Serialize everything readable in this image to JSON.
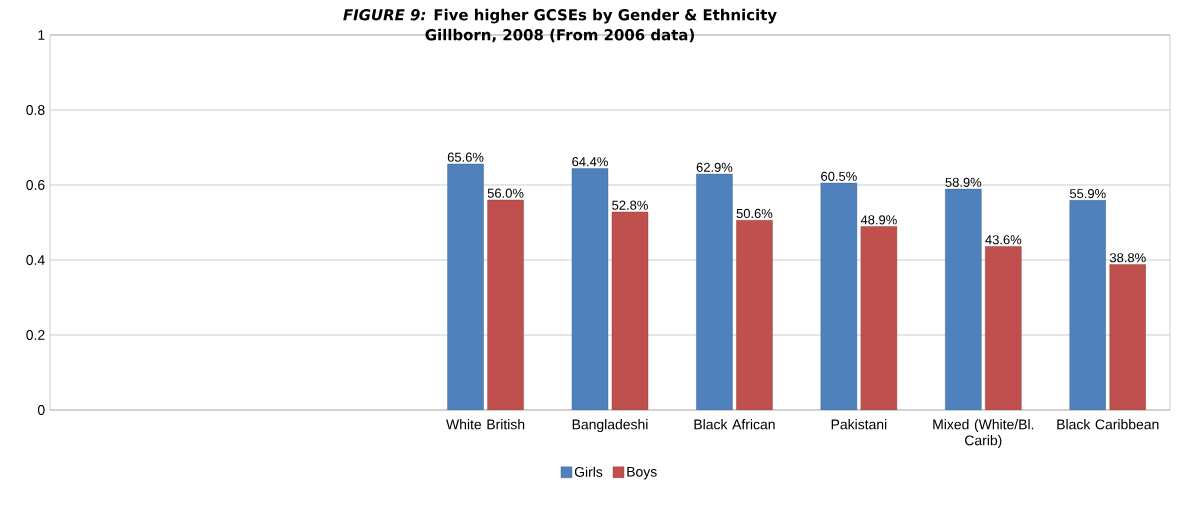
{
  "chart_data": {
    "type": "bar",
    "title": "*FIGURE 9:* Five higher GCSEs by Gender & Ethnicity",
    "subtitle": "Gillborn, 2008 (From 2006 data)",
    "categories": [
      null,
      null,
      null,
      "White British",
      "Bangladeshi",
      "Black African",
      "Pakistani",
      "Mixed (White/Bl. Carib)",
      "Black Caribbean"
    ],
    "series": [
      {
        "name": "Girls",
        "color": "#4f81bd",
        "values": [
          null,
          null,
          null,
          0.656,
          0.644,
          0.629,
          0.605,
          0.589,
          0.559
        ],
        "value_labels": [
          null,
          null,
          null,
          "65.6%",
          "64.4%",
          "62.9%",
          "60.5%",
          "58.9%",
          "55.9%"
        ]
      },
      {
        "name": "Boys",
        "color": "#c0504d",
        "values": [
          null,
          null,
          null,
          0.56,
          0.528,
          0.506,
          0.489,
          0.436,
          0.388
        ],
        "value_labels": [
          null,
          null,
          null,
          "56.0%",
          "52.8%",
          "50.6%",
          "48.9%",
          "43.6%",
          "38.8%"
        ]
      }
    ],
    "ylim": [
      0,
      1
    ],
    "yticks": [
      0,
      0.2,
      0.4,
      0.6,
      0.8,
      1
    ],
    "grid": "y",
    "legend": "bottom"
  }
}
